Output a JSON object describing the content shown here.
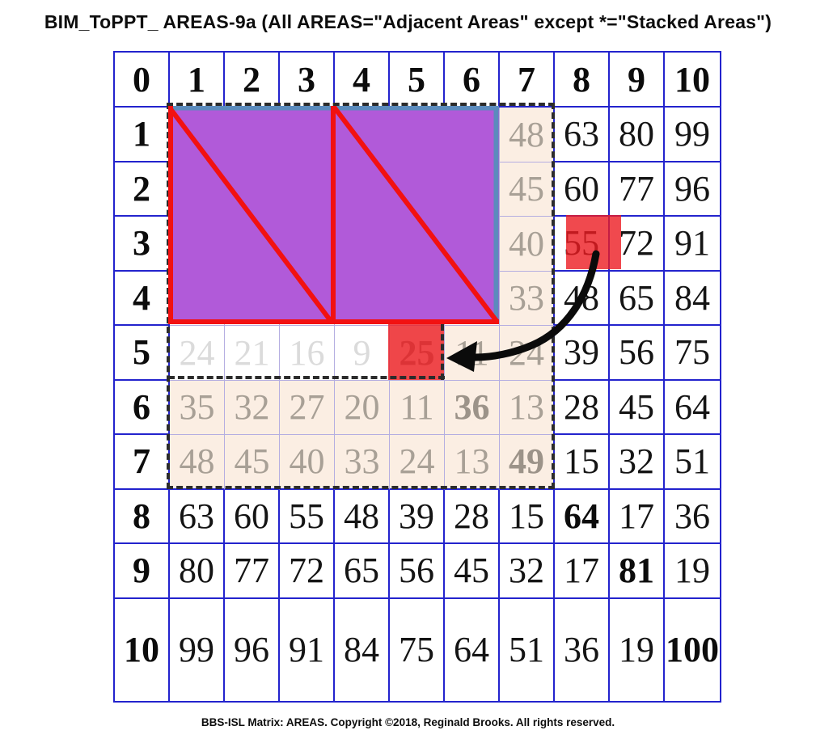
{
  "title": "BIM_ToPPT_ AREAS-9a (All AREAS=\"Adjacent Areas\" except *=\"Stacked Areas\")",
  "footer": "BBS-ISL Matrix: AREAS. Copyright ©2018, Reginald Brooks. All rights reserved.",
  "grid": {
    "values": [
      [
        "0",
        "1",
        "2",
        "3",
        "4",
        "5",
        "6",
        "7",
        "8",
        "9",
        "10"
      ],
      [
        "1",
        "",
        "",
        "",
        "",
        "",
        "",
        "48",
        "63",
        "80",
        "99"
      ],
      [
        "2",
        "",
        "",
        "",
        "",
        "",
        "",
        "45",
        "60",
        "77",
        "96"
      ],
      [
        "3",
        "",
        "",
        "",
        "",
        "",
        "",
        "40",
        "55",
        "72",
        "91"
      ],
      [
        "4",
        "",
        "",
        "",
        "",
        "",
        "",
        "33",
        "48",
        "65",
        "84"
      ],
      [
        "5",
        "24",
        "21",
        "16",
        "9",
        "25",
        "11",
        "24",
        "39",
        "56",
        "75"
      ],
      [
        "6",
        "35",
        "32",
        "27",
        "20",
        "11",
        "36",
        "13",
        "28",
        "45",
        "64"
      ],
      [
        "7",
        "48",
        "45",
        "40",
        "33",
        "24",
        "13",
        "49",
        "15",
        "32",
        "51"
      ],
      [
        "8",
        "63",
        "60",
        "55",
        "48",
        "39",
        "28",
        "15",
        "64",
        "17",
        "36"
      ],
      [
        "9",
        "80",
        "77",
        "72",
        "65",
        "56",
        "45",
        "32",
        "17",
        "81",
        "19"
      ],
      [
        "10",
        "99",
        "96",
        "91",
        "84",
        "75",
        "64",
        "51",
        "36",
        "19",
        "100"
      ]
    ],
    "styles": [
      [
        "h",
        "h",
        "h",
        "h",
        "h",
        "h",
        "h",
        "h",
        "h",
        "h",
        "h"
      ],
      [
        "h",
        "e",
        "e",
        "e",
        "e",
        "e",
        "e",
        "g",
        "k",
        "k",
        "k"
      ],
      [
        "h",
        "e",
        "e",
        "e",
        "e",
        "e",
        "e",
        "g",
        "k",
        "k",
        "k"
      ],
      [
        "h",
        "e",
        "e",
        "e",
        "e",
        "e",
        "e",
        "g",
        "k",
        "k",
        "k"
      ],
      [
        "h",
        "e",
        "e",
        "e",
        "e",
        "e",
        "e",
        "g",
        "k",
        "k",
        "k"
      ],
      [
        "h",
        "lg",
        "lg",
        "lg",
        "lg",
        "gb",
        "g",
        "g",
        "k",
        "k",
        "k"
      ],
      [
        "h",
        "g",
        "g",
        "g",
        "g",
        "g",
        "gb",
        "g",
        "k",
        "k",
        "k"
      ],
      [
        "h",
        "g",
        "g",
        "g",
        "g",
        "g",
        "g",
        "gb",
        "k",
        "k",
        "k"
      ],
      [
        "h",
        "k",
        "k",
        "k",
        "k",
        "k",
        "k",
        "k",
        "kb",
        "k",
        "k"
      ],
      [
        "h",
        "k",
        "k",
        "k",
        "k",
        "k",
        "k",
        "k",
        "k",
        "kb",
        "k"
      ],
      [
        "h",
        "k",
        "k",
        "k",
        "k",
        "k",
        "k",
        "k",
        "k",
        "k",
        "kbw"
      ]
    ],
    "highlighted_values": {
      "stacked_area_source": "55",
      "stacked_area_target": "25"
    }
  },
  "colors": {
    "grid_line_blue": "#2323cd",
    "pale_region_line": "#b5aee1",
    "region_background": "#fbeee3",
    "gray_number": "#a8a096",
    "light_gray_number": "#dbdbdb",
    "purple_block": "#b15ad9",
    "red_accent": "#f21111",
    "red_square": "rgba(236,28,34,0.8)",
    "steel_blue_border": "#5b8bbd",
    "dash_black": "#2c2c2c"
  }
}
